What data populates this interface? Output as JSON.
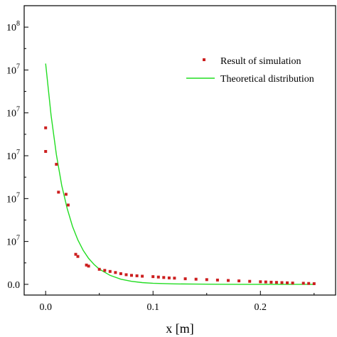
{
  "chart_data": {
    "type": "scatter",
    "title": "",
    "xlabel": "x [m]",
    "ylabel": "",
    "xlim": [
      -0.02,
      0.27
    ],
    "ylim": [
      -5,
      130
    ],
    "x_ticks": [
      0.0,
      0.1,
      0.2
    ],
    "x_tick_labels": [
      "0.0",
      "0.1",
      "0.2"
    ],
    "y_ticks": [
      0,
      20,
      40,
      60,
      80,
      100,
      120
    ],
    "y_tick_labels": [
      "0.0",
      "10⁷",
      "10⁷",
      "10⁷",
      "10⁷",
      "10⁷",
      "10⁸"
    ],
    "grid": false,
    "legend_position": "top-right",
    "series": [
      {
        "name": "Result of simulation",
        "type": "scatter",
        "color": "#cc1f1f",
        "x": [
          0.0,
          0.0,
          0.01,
          0.012,
          0.019,
          0.021,
          0.028,
          0.03,
          0.038,
          0.04,
          0.05,
          0.055,
          0.06,
          0.065,
          0.07,
          0.075,
          0.08,
          0.085,
          0.09,
          0.1,
          0.105,
          0.11,
          0.115,
          0.12,
          0.13,
          0.14,
          0.15,
          0.16,
          0.17,
          0.18,
          0.19,
          0.2,
          0.205,
          0.21,
          0.215,
          0.22,
          0.225,
          0.23,
          0.24,
          0.245,
          0.25
        ],
        "y": [
          73,
          62,
          56,
          43,
          42,
          37,
          14,
          13,
          9,
          8.5,
          7,
          6.5,
          6,
          5.5,
          5,
          4.5,
          4.2,
          4,
          3.8,
          3.6,
          3.4,
          3.2,
          3,
          2.9,
          2.6,
          2.4,
          2.2,
          2,
          1.8,
          1.6,
          1.4,
          1.2,
          1.1,
          1,
          0.9,
          0.8,
          0.7,
          0.6,
          0.5,
          0.4,
          0.3
        ]
      },
      {
        "name": "Theoretical distribution",
        "type": "line",
        "color": "#22dd22",
        "x": [
          0.0,
          0.005,
          0.01,
          0.015,
          0.02,
          0.025,
          0.03,
          0.035,
          0.04,
          0.045,
          0.05,
          0.06,
          0.07,
          0.08,
          0.09,
          0.1,
          0.12,
          0.14,
          0.16,
          0.18,
          0.2,
          0.22,
          0.25
        ],
        "y": [
          103,
          79,
          60.5,
          46,
          35.5,
          27,
          20.7,
          15.8,
          12.1,
          9.3,
          7.1,
          4.2,
          2.4,
          1.4,
          0.8,
          0.5,
          0.2,
          0.1,
          0.05,
          0.02,
          0.01,
          0.0,
          0.0
        ]
      }
    ]
  }
}
